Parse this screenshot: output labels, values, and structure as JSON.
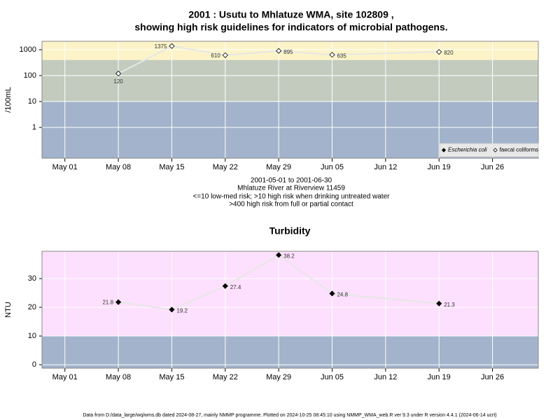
{
  "chart_data": [
    {
      "type": "line",
      "title": "2001 : Usutu to Mhlatuze WMA, site 102809 ,",
      "subtitle": "showing high risk guidelines for indicators of microbial pathogens.",
      "y_label": "/100mL",
      "notes": [
        "2001-05-01 to 2001-06-30",
        "Mhlatuze River at Riverview 11459",
        "<=10 low-med risk; >10 high risk when drinking untreated water",
        ">400 high risk from full or partial contact"
      ],
      "x": [
        "2001-05-08",
        "2001-05-15",
        "2001-05-22",
        "2001-05-29",
        "2001-06-05",
        "2001-06-19"
      ],
      "series": [
        {
          "name": "Escherichia coli",
          "color": "#000000",
          "marker": "filled",
          "values": [
            null,
            null,
            null,
            null,
            null,
            null
          ]
        },
        {
          "name": "faecal coliforms",
          "color": "#000000",
          "marker": "open",
          "values": [
            120,
            1375,
            610,
            895,
            635,
            820
          ]
        }
      ],
      "log_scale": true,
      "xlim": [
        "2001-04-28",
        "2001-07-02"
      ],
      "xticks": [
        {
          "value": "2001-05-01",
          "label": "May 01"
        },
        {
          "value": "2001-05-08",
          "label": "May 08"
        },
        {
          "value": "2001-05-15",
          "label": "May 15"
        },
        {
          "value": "2001-05-22",
          "label": "May 22"
        },
        {
          "value": "2001-05-29",
          "label": "May 29"
        },
        {
          "value": "2001-06-05",
          "label": "Jun 05"
        },
        {
          "value": "2001-06-12",
          "label": "Jun 12"
        },
        {
          "value": "2001-06-19",
          "label": "Jun 19"
        },
        {
          "value": "2001-06-26",
          "label": "Jun 26"
        }
      ],
      "ylim": [
        0.065,
        2100
      ],
      "yticks": [
        1,
        10,
        100,
        1000
      ],
      "thresholds": [
        10,
        400
      ],
      "band_colors": [
        "#a2b3cb",
        "#c3cbbf",
        "#fcf4c8"
      ],
      "grid": true,
      "legend": "bottom-right"
    },
    {
      "type": "line",
      "title": "Turbidity",
      "y_label": "NTU",
      "x": [
        "2001-05-08",
        "2001-05-15",
        "2001-05-22",
        "2001-05-29",
        "2001-06-05",
        "2001-06-19"
      ],
      "series": [
        {
          "name": "Turbidity",
          "color": "#000000",
          "marker": "filled",
          "values": [
            21.8,
            19.2,
            27.4,
            38.2,
            24.8,
            21.3
          ]
        }
      ],
      "log_scale": false,
      "xlim": [
        "2001-04-28",
        "2001-07-02"
      ],
      "xticks": [
        {
          "value": "2001-05-01",
          "label": "May 01"
        },
        {
          "value": "2001-05-08",
          "label": "May 08"
        },
        {
          "value": "2001-05-15",
          "label": "May 15"
        },
        {
          "value": "2001-05-22",
          "label": "May 22"
        },
        {
          "value": "2001-05-29",
          "label": "May 29"
        },
        {
          "value": "2001-06-05",
          "label": "Jun 05"
        },
        {
          "value": "2001-06-12",
          "label": "Jun 12"
        },
        {
          "value": "2001-06-19",
          "label": "Jun 19"
        },
        {
          "value": "2001-06-26",
          "label": "Jun 26"
        }
      ],
      "ylim": [
        -1.2,
        39.5
      ],
      "yticks": [
        0,
        10,
        20,
        30
      ],
      "thresholds": [
        10
      ],
      "band_colors": [
        "#a2b3cb",
        "#fde0fd"
      ],
      "grid": true
    }
  ],
  "footer": "Data from D:/data_large/wq/wms.db dated 2024-08-27, mainly NMMP programme. Plotted on 2024-10-25 08:45:10 using NMMP_WMA_web.R ver 9.3 under R version 4.4.1 (2024-06-14 ucrt)"
}
